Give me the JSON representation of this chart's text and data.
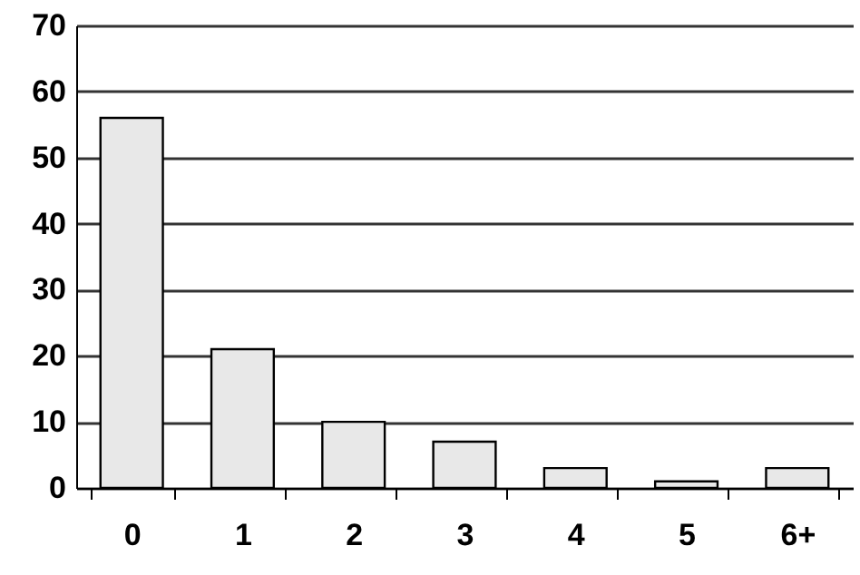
{
  "chart_data": {
    "type": "bar",
    "categories": [
      "0",
      "1",
      "2",
      "3",
      "4",
      "5",
      "6+"
    ],
    "values": [
      56,
      21,
      10,
      7,
      3,
      1,
      3
    ],
    "color": "#e8e8e8",
    "ylim": [
      0,
      70
    ],
    "yticks": [
      0,
      10,
      20,
      30,
      40,
      50,
      60,
      70
    ],
    "grid": "y"
  }
}
